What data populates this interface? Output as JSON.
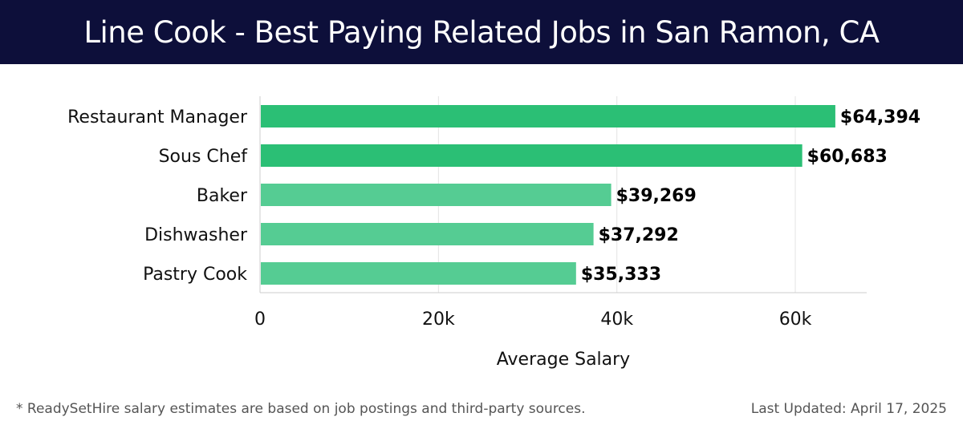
{
  "header": {
    "title": "Line Cook - Best Paying Related Jobs in San Ramon, CA"
  },
  "footer": {
    "note": "* ReadySetHire salary estimates are based on job postings and third-party sources.",
    "updated": "Last Updated: April 17, 2025"
  },
  "colors": {
    "header_bg": "#0d0f3a",
    "bar_primary": "#2bbf75",
    "bar_secondary": "#55cc93",
    "grid": "#e3e3e3"
  },
  "chart_data": {
    "type": "bar",
    "orientation": "horizontal",
    "categories": [
      "Restaurant Manager",
      "Sous Chef",
      "Baker",
      "Dishwasher",
      "Pastry Cook"
    ],
    "values": [
      64394,
      60683,
      39269,
      37292,
      35333
    ],
    "value_labels": [
      "$64,394",
      "$60,683",
      "$39,269",
      "$37,292",
      "$35,333"
    ],
    "emphasis": [
      true,
      true,
      false,
      false,
      false
    ],
    "xlabel": "Average Salary",
    "xlim": [
      0,
      68000
    ],
    "xticks": [
      0,
      20000,
      40000,
      60000
    ],
    "xtick_labels": [
      "0",
      "20k",
      "40k",
      "60k"
    ],
    "grid": true
  }
}
